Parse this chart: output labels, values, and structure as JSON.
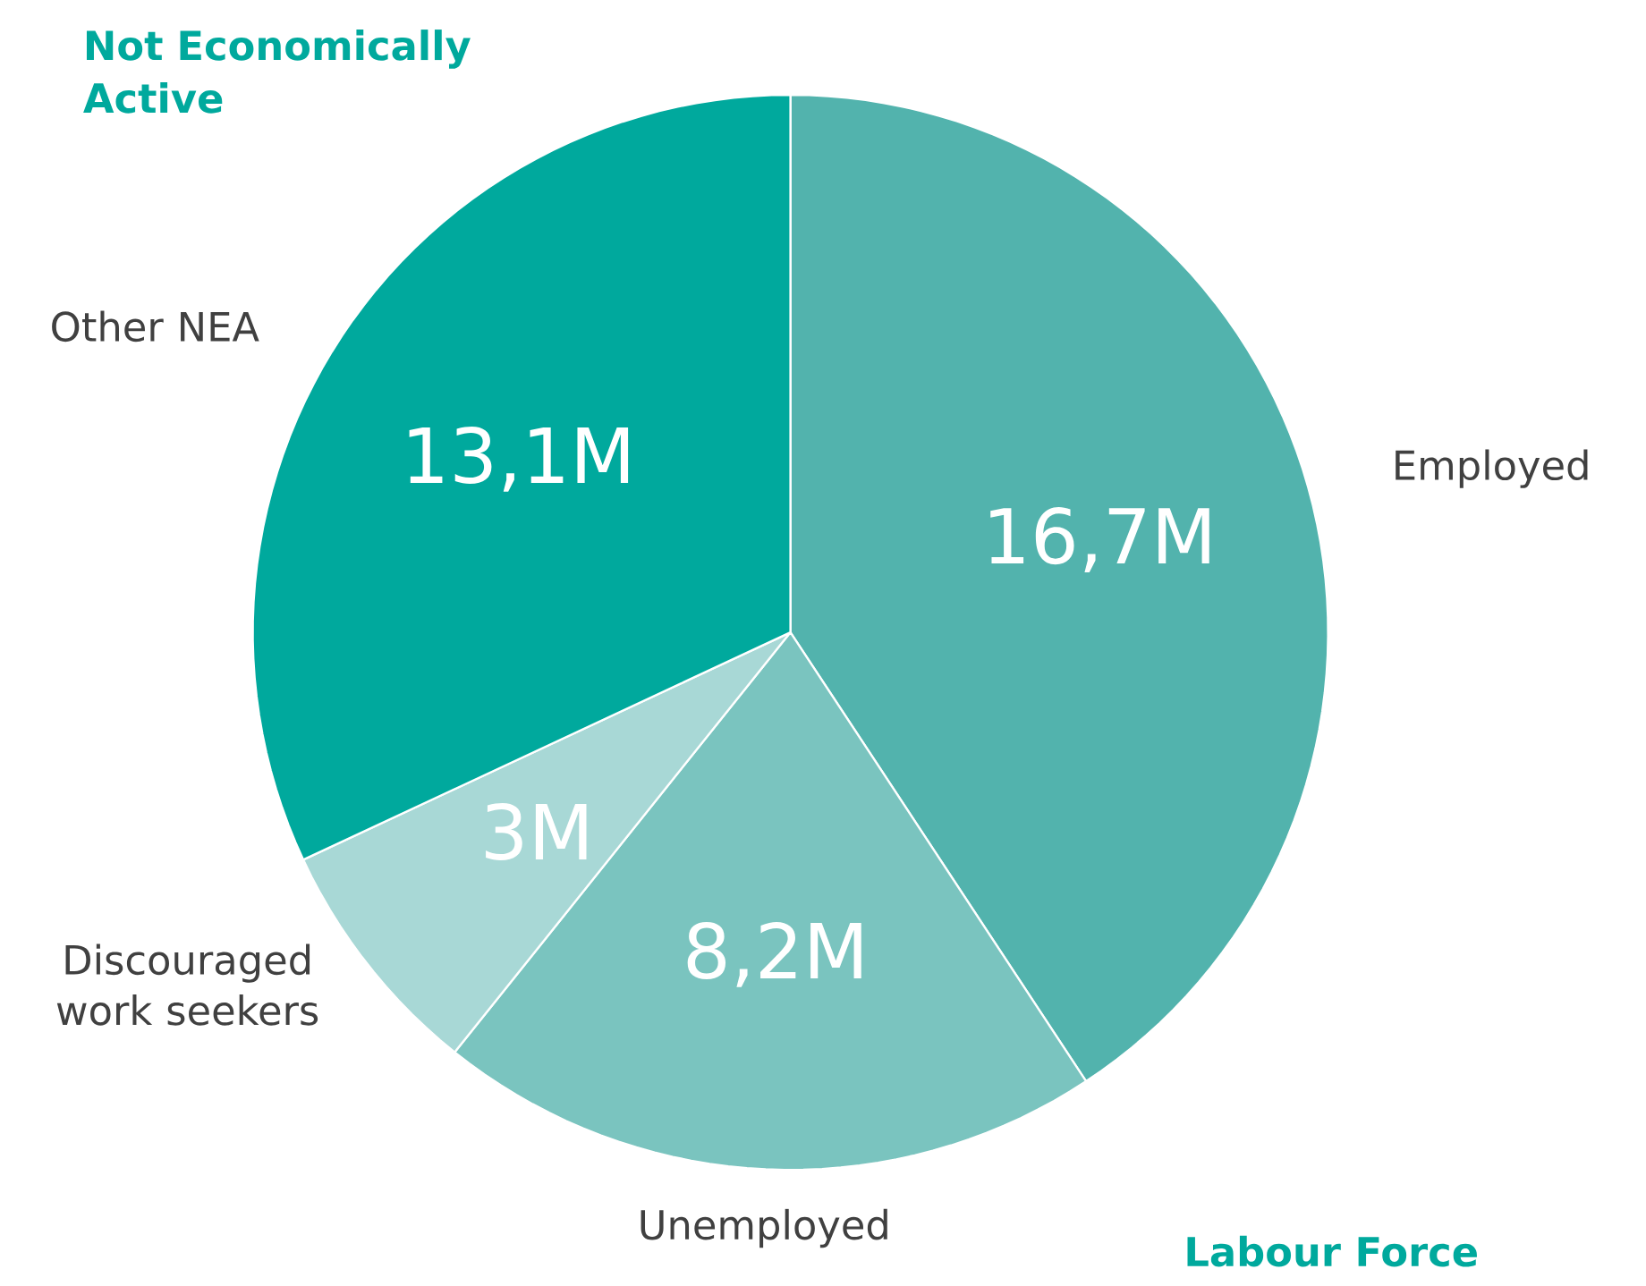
{
  "chart_data": {
    "type": "pie",
    "categories": [
      "Employed",
      "Unemployed",
      "Discouraged work seekers",
      "Other NEA"
    ],
    "values": [
      16.7,
      8.2,
      3,
      13.1
    ],
    "colors": [
      "#52b3ad",
      "#7ac4bf",
      "#a8d8d6",
      "#00a99d"
    ],
    "value_labels": [
      "16,7M",
      "8,2M",
      "3M",
      "13,1M"
    ],
    "annotations": [
      "Not Economically Active",
      "Labour Force"
    ]
  }
}
